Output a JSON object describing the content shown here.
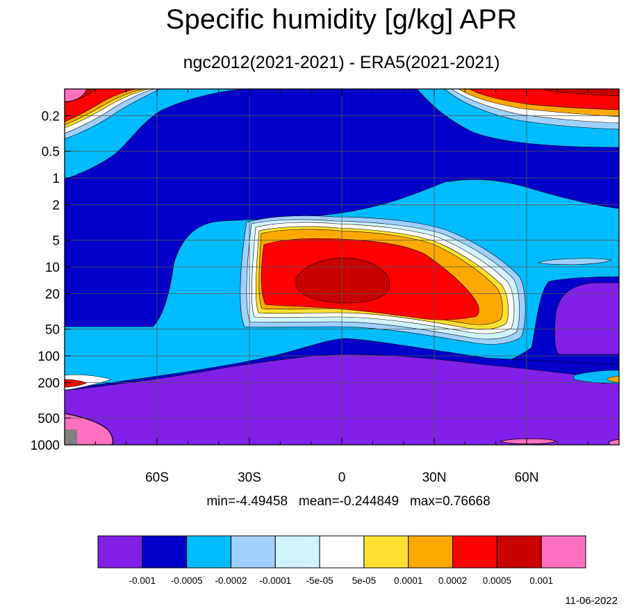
{
  "chart_data": {
    "type": "heatmap",
    "title": "Specific humidity [g/kg] APR",
    "subtitle": "ngc2012(2021-2021) - ERA5(2021-2021)",
    "x_tick_labels": [
      "60S",
      "30S",
      "0",
      "30N",
      "60N"
    ],
    "x_ticks_deg": [
      -60,
      -30,
      0,
      30,
      60
    ],
    "xlim": [
      -90,
      90
    ],
    "y_tick_labels": [
      "0.2",
      "0.5",
      "1",
      "2",
      "5",
      "10",
      "20",
      "50",
      "100",
      "200",
      "500",
      "1000"
    ],
    "y_ticks": [
      0.2,
      0.5,
      1,
      2,
      5,
      10,
      20,
      50,
      100,
      200,
      500,
      1000
    ],
    "ylim": [
      1000,
      0.1
    ],
    "y_scale": "log",
    "grid": true,
    "stats": {
      "min_label": "min=",
      "min": "-4.49458",
      "mean_label": "mean=",
      "mean": "-0.244849",
      "max_label": "max=",
      "max": "0.76668"
    },
    "colorbar": {
      "colors": [
        "#8020e8",
        "#0000c8",
        "#00bcff",
        "#a0d0ff",
        "#d0f4ff",
        "#ffffff",
        "#ffe030",
        "#ffa800",
        "#ff0000",
        "#c80000",
        "#ff70c0"
      ],
      "labels": [
        "-0.001",
        "-0.0005",
        "-0.0002",
        "-0.0001",
        "-5e-05",
        "5e-05",
        "0.0001",
        "0.0002",
        "0.0005",
        "0.001"
      ]
    },
    "date": "11-06-2022"
  }
}
